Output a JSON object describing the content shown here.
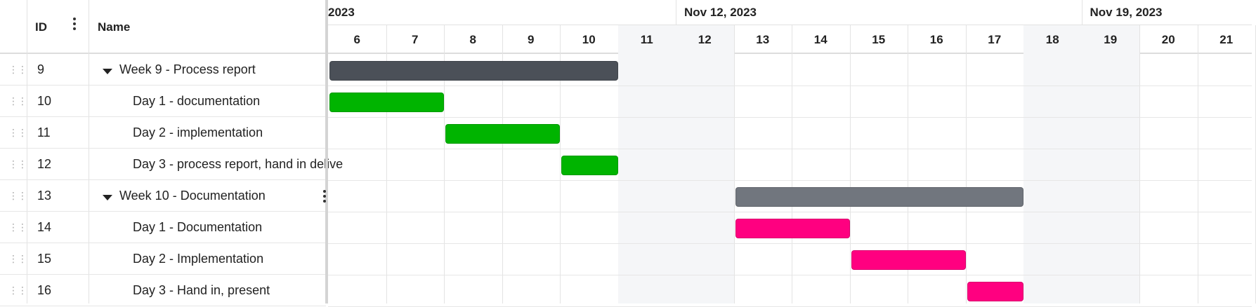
{
  "columns": {
    "id": "ID",
    "name": "Name"
  },
  "timeline": {
    "weeks": [
      "2023",
      "Nov 12, 2023",
      "Nov 19, 2023"
    ],
    "days": [
      6,
      7,
      8,
      9,
      10,
      11,
      12,
      13,
      14,
      15,
      16,
      17,
      18,
      19,
      20,
      21
    ],
    "weekend": [
      11,
      12,
      18,
      19
    ]
  },
  "tasks": [
    {
      "id": 9,
      "name": "Week 9 - Process report",
      "level": 0,
      "expanded": true,
      "start": 6,
      "end": 10,
      "color": "#4b5058"
    },
    {
      "id": 10,
      "name": "Day 1 - documentation",
      "level": 1,
      "start": 6,
      "end": 7,
      "color": "#00b400"
    },
    {
      "id": 11,
      "name": "Day 2 - implementation",
      "level": 1,
      "start": 8,
      "end": 9,
      "color": "#00b400"
    },
    {
      "id": 12,
      "name": "Day 3 - process report, hand in delive",
      "level": 1,
      "start": 10,
      "end": 10,
      "color": "#00b400"
    },
    {
      "id": 13,
      "name": "Week 10 - Documentation",
      "level": 0,
      "expanded": true,
      "start": 13,
      "end": 17,
      "color": "#71767e"
    },
    {
      "id": 14,
      "name": "Day 1 - Documentation",
      "level": 1,
      "start": 13,
      "end": 14,
      "color": "#ff0080"
    },
    {
      "id": 15,
      "name": "Day 2 - Implementation",
      "level": 1,
      "start": 15,
      "end": 16,
      "color": "#ff0080"
    },
    {
      "id": 16,
      "name": "Day 3 - Hand in, present",
      "level": 1,
      "start": 17,
      "end": 17,
      "color": "#ff0080"
    }
  ]
}
